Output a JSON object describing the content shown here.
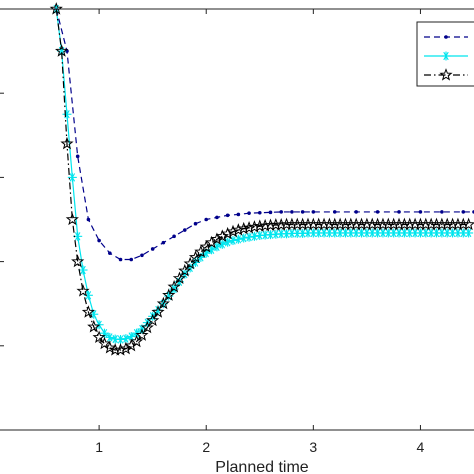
{
  "chart_data": {
    "type": "line",
    "xlabel": "Planned time",
    "ylabel": "",
    "xlim": [
      0.0,
      4.5
    ],
    "ylim": [
      0.0,
      1.0
    ],
    "x_ticks": [
      "1",
      "2",
      "3",
      "4"
    ],
    "x_tick_values": [
      1,
      2,
      3,
      4
    ],
    "grid": false,
    "legend": {
      "placement": "top-right",
      "text_visible": false
    },
    "series": [
      {
        "color": "#00008B",
        "line_style": "dashed",
        "marker": "dot",
        "x": [
          0.6,
          0.7,
          0.8,
          0.9,
          1.0,
          1.1,
          1.2,
          1.3,
          1.4,
          1.5,
          1.6,
          1.7,
          1.8,
          1.9,
          2.0,
          2.1,
          2.2,
          2.3,
          2.4,
          2.5,
          2.6,
          2.7,
          2.8,
          2.9,
          3.0,
          3.2,
          3.4,
          3.6,
          3.8,
          4.0,
          4.2,
          4.4,
          4.5
        ],
        "values": [
          1.0,
          0.9,
          0.65,
          0.5,
          0.45,
          0.42,
          0.405,
          0.405,
          0.415,
          0.43,
          0.445,
          0.46,
          0.475,
          0.49,
          0.5,
          0.505,
          0.51,
          0.512,
          0.515,
          0.516,
          0.517,
          0.518,
          0.518,
          0.518,
          0.518,
          0.518,
          0.518,
          0.518,
          0.518,
          0.518,
          0.518,
          0.518,
          0.518
        ]
      },
      {
        "color": "#00E5EE",
        "line_style": "solid",
        "marker": "asterisk",
        "x": [
          0.6,
          0.65,
          0.7,
          0.75,
          0.8,
          0.85,
          0.9,
          0.95,
          1.0,
          1.05,
          1.1,
          1.15,
          1.2,
          1.25,
          1.3,
          1.35,
          1.4,
          1.45,
          1.5,
          1.55,
          1.6,
          1.65,
          1.7,
          1.75,
          1.8,
          1.85,
          1.9,
          1.95,
          2.0,
          2.05,
          2.1,
          2.15,
          2.2,
          2.25,
          2.3,
          2.35,
          2.4,
          2.45,
          2.5,
          2.55,
          2.6,
          2.65,
          2.7,
          2.75,
          2.8,
          2.85,
          2.9,
          2.95,
          3.0,
          3.05,
          3.1,
          3.15,
          3.2,
          3.25,
          3.3,
          3.35,
          3.4,
          3.45,
          3.5,
          3.55,
          3.6,
          3.65,
          3.7,
          3.75,
          3.8,
          3.85,
          3.9,
          3.95,
          4.0,
          4.05,
          4.1,
          4.15,
          4.2,
          4.25,
          4.3,
          4.35,
          4.4,
          4.45
        ],
        "values": [
          1.0,
          0.9,
          0.75,
          0.6,
          0.46,
          0.38,
          0.32,
          0.275,
          0.25,
          0.23,
          0.22,
          0.216,
          0.215,
          0.217,
          0.222,
          0.23,
          0.24,
          0.255,
          0.27,
          0.285,
          0.3,
          0.318,
          0.335,
          0.352,
          0.37,
          0.385,
          0.398,
          0.41,
          0.42,
          0.428,
          0.435,
          0.441,
          0.446,
          0.45,
          0.453,
          0.456,
          0.458,
          0.46,
          0.462,
          0.463,
          0.464,
          0.465,
          0.466,
          0.466,
          0.467,
          0.467,
          0.467,
          0.468,
          0.468,
          0.468,
          0.468,
          0.468,
          0.468,
          0.468,
          0.468,
          0.468,
          0.468,
          0.468,
          0.468,
          0.468,
          0.468,
          0.468,
          0.468,
          0.468,
          0.468,
          0.468,
          0.468,
          0.468,
          0.468,
          0.468,
          0.468,
          0.468,
          0.468,
          0.468,
          0.468,
          0.468,
          0.468,
          0.468
        ]
      },
      {
        "color": "#000000",
        "line_style": "dash-dot",
        "marker": "star",
        "x": [
          0.6,
          0.65,
          0.7,
          0.75,
          0.8,
          0.85,
          0.9,
          0.95,
          1.0,
          1.05,
          1.1,
          1.15,
          1.2,
          1.25,
          1.3,
          1.35,
          1.4,
          1.45,
          1.5,
          1.55,
          1.6,
          1.65,
          1.7,
          1.75,
          1.8,
          1.85,
          1.9,
          1.95,
          2.0,
          2.05,
          2.1,
          2.15,
          2.2,
          2.25,
          2.3,
          2.35,
          2.4,
          2.45,
          2.5,
          2.55,
          2.6,
          2.65,
          2.7,
          2.75,
          2.8,
          2.85,
          2.9,
          2.95,
          3.0,
          3.05,
          3.1,
          3.15,
          3.2,
          3.25,
          3.3,
          3.35,
          3.4,
          3.45,
          3.5,
          3.55,
          3.6,
          3.65,
          3.7,
          3.75,
          3.8,
          3.85,
          3.9,
          3.95,
          4.0,
          4.05,
          4.1,
          4.15,
          4.2,
          4.25,
          4.3,
          4.35,
          4.4,
          4.45
        ],
        "values": [
          1.0,
          0.9,
          0.68,
          0.5,
          0.4,
          0.33,
          0.28,
          0.245,
          0.22,
          0.205,
          0.195,
          0.19,
          0.19,
          0.193,
          0.2,
          0.21,
          0.225,
          0.243,
          0.26,
          0.28,
          0.3,
          0.32,
          0.34,
          0.36,
          0.378,
          0.395,
          0.41,
          0.423,
          0.435,
          0.445,
          0.453,
          0.46,
          0.466,
          0.471,
          0.475,
          0.478,
          0.48,
          0.482,
          0.484,
          0.485,
          0.486,
          0.487,
          0.487,
          0.488,
          0.488,
          0.488,
          0.488,
          0.488,
          0.488,
          0.488,
          0.488,
          0.488,
          0.488,
          0.488,
          0.488,
          0.488,
          0.488,
          0.488,
          0.488,
          0.488,
          0.488,
          0.488,
          0.488,
          0.488,
          0.488,
          0.488,
          0.488,
          0.488,
          0.488,
          0.488,
          0.488,
          0.488,
          0.488,
          0.488,
          0.488,
          0.488,
          0.488,
          0.488
        ]
      }
    ]
  }
}
